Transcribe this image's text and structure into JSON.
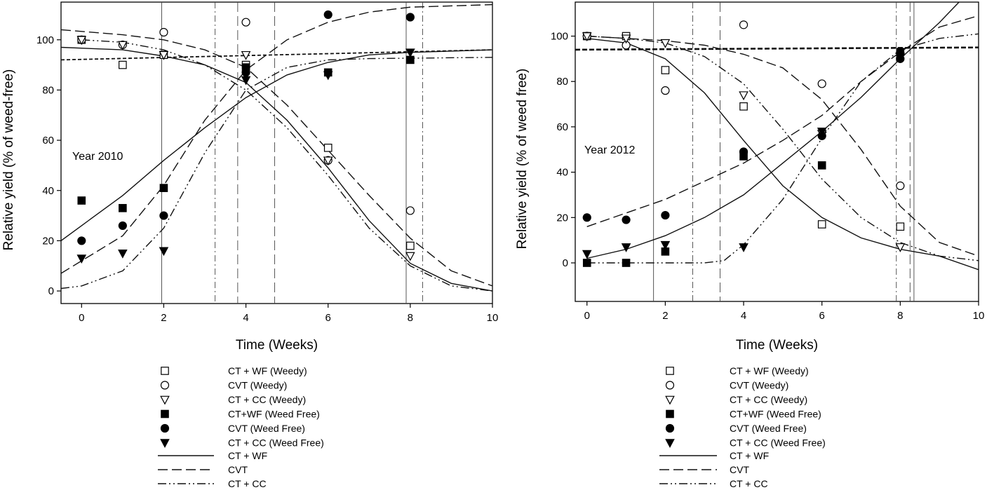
{
  "chart_data": [
    {
      "type": "scatter",
      "title": "",
      "annotation": "Year 2010",
      "xlabel": "Time (Weeks)",
      "ylabel": "Relative yield (% of weed-free)",
      "xlim": [
        -0.5,
        10
      ],
      "ylim": [
        -5,
        115
      ],
      "xticks": [
        "0",
        "2",
        "4",
        "6",
        "8",
        "10"
      ],
      "yticks": [
        "0",
        "20",
        "40",
        "60",
        "80",
        "100"
      ],
      "grid": false,
      "legend_position": "below",
      "series": [
        {
          "name": "CT + WF (Weedy)",
          "marker": "open-square",
          "points": [
            [
              0,
              100
            ],
            [
              1,
              90
            ],
            [
              2,
              94
            ],
            [
              4,
              90
            ],
            [
              6,
              57
            ],
            [
              8,
              18
            ]
          ]
        },
        {
          "name": "CVT (Weedy)",
          "marker": "open-circle",
          "points": [
            [
              0,
              100
            ],
            [
              1,
              98
            ],
            [
              2,
              103
            ],
            [
              4,
              107
            ],
            [
              6,
              52
            ],
            [
              8,
              32
            ]
          ]
        },
        {
          "name": "CT + CC (Weedy)",
          "marker": "open-triangle-down",
          "points": [
            [
              0,
              100
            ],
            [
              1,
              98
            ],
            [
              2,
              94
            ],
            [
              4,
              94
            ],
            [
              6,
              52
            ],
            [
              8,
              14
            ]
          ]
        },
        {
          "name": "CT+WF (Weed Free)",
          "marker": "filled-square",
          "points": [
            [
              0,
              36
            ],
            [
              1,
              33
            ],
            [
              2,
              41
            ],
            [
              4,
              89
            ],
            [
              6,
              87
            ],
            [
              8,
              92
            ]
          ]
        },
        {
          "name": "CVT (Weed Free)",
          "marker": "filled-circle",
          "points": [
            [
              0,
              20
            ],
            [
              1,
              26
            ],
            [
              2,
              30
            ],
            [
              4,
              87
            ],
            [
              6,
              110
            ],
            [
              8,
              109
            ]
          ]
        },
        {
          "name": "CT + CC (Weed Free)",
          "marker": "filled-triangle-down",
          "points": [
            [
              0,
              13
            ],
            [
              1,
              15
            ],
            [
              2,
              16
            ],
            [
              4,
              84
            ],
            [
              6,
              86
            ],
            [
              8,
              95
            ]
          ]
        }
      ],
      "curves": [
        {
          "name": "CT + WF",
          "style": "solid",
          "points": [
            [
              -0.5,
              97
            ],
            [
              1,
              96
            ],
            [
              2,
              93.5
            ],
            [
              3,
              90
            ],
            [
              4,
              83
            ],
            [
              5,
              68
            ],
            [
              6,
              49
            ],
            [
              7,
              28
            ],
            [
              8,
              11
            ],
            [
              9,
              3
            ],
            [
              10,
              0
            ]
          ]
        },
        {
          "name": "CVT",
          "style": "dashed",
          "points": [
            [
              -0.5,
              104
            ],
            [
              1,
              102
            ],
            [
              2,
              100
            ],
            [
              3,
              96
            ],
            [
              4,
              89
            ],
            [
              5,
              74
            ],
            [
              6,
              56
            ],
            [
              7,
              38
            ],
            [
              8,
              21
            ],
            [
              9,
              8
            ],
            [
              10,
              2
            ]
          ]
        },
        {
          "name": "CT + CC",
          "style": "dash-dot-dot",
          "points": [
            [
              0,
              100
            ],
            [
              1,
              99
            ],
            [
              2,
              96
            ],
            [
              3,
              90
            ],
            [
              4,
              80
            ],
            [
              5,
              65
            ],
            [
              6,
              46
            ],
            [
              7,
              25
            ],
            [
              8,
              10
            ],
            [
              9,
              2
            ],
            [
              10,
              0
            ]
          ]
        },
        {
          "name": "CT + WF (Weed Free) fit",
          "style": "solid",
          "points": [
            [
              -0.5,
              20
            ],
            [
              0,
              26
            ],
            [
              1,
              38
            ],
            [
              2,
              52
            ],
            [
              3,
              65
            ],
            [
              4,
              77
            ],
            [
              5,
              86
            ],
            [
              6,
              91
            ],
            [
              7,
              94
            ],
            [
              8,
              95
            ],
            [
              10,
              96
            ]
          ]
        },
        {
          "name": "CVT (Weed Free) fit",
          "style": "dashed",
          "points": [
            [
              -0.5,
              7
            ],
            [
              0,
              12
            ],
            [
              1,
              22
            ],
            [
              2,
              42
            ],
            [
              3,
              68
            ],
            [
              4,
              88
            ],
            [
              5,
              100
            ],
            [
              6,
              107
            ],
            [
              7,
              111
            ],
            [
              8,
              113
            ],
            [
              10,
              114
            ]
          ]
        },
        {
          "name": "CT + CC (Weed Free) fit",
          "style": "dash-dot-dot",
          "points": [
            [
              -0.5,
              1
            ],
            [
              0,
              2
            ],
            [
              1,
              8
            ],
            [
              2,
              25
            ],
            [
              3,
              55
            ],
            [
              4,
              80
            ],
            [
              5,
              89
            ],
            [
              6,
              92
            ],
            [
              7,
              92.5
            ],
            [
              10,
              93
            ]
          ]
        },
        {
          "name": "reference level",
          "style": "short-dash",
          "points": [
            [
              -0.5,
              92
            ],
            [
              10,
              96
            ]
          ]
        }
      ],
      "vertical_markers": [
        {
          "x": 1.95,
          "style": "solid"
        },
        {
          "x": 3.25,
          "style": "dash-dot"
        },
        {
          "x": 3.8,
          "style": "dashed"
        },
        {
          "x": 4.7,
          "style": "dashed"
        },
        {
          "x": 7.9,
          "style": "solid"
        },
        {
          "x": 8.3,
          "style": "dash-dot"
        }
      ]
    },
    {
      "type": "scatter",
      "title": "",
      "annotation": "Year 2012",
      "xlabel": "Time (Weeks)",
      "ylabel": "Relative yield (% of weed free)",
      "xlim": [
        -0.3,
        10
      ],
      "ylim": [
        -17,
        115
      ],
      "xticks": [
        "0",
        "2",
        "4",
        "6",
        "8",
        "10"
      ],
      "yticks": [
        "0",
        "20",
        "40",
        "60",
        "80",
        "100"
      ],
      "grid": false,
      "legend_position": "below",
      "series": [
        {
          "name": "CT + WF (Weedy)",
          "marker": "open-square",
          "points": [
            [
              0,
              100
            ],
            [
              1,
              100
            ],
            [
              2,
              85
            ],
            [
              4,
              69
            ],
            [
              6,
              17
            ],
            [
              8,
              16
            ]
          ]
        },
        {
          "name": "CVT (Weedy)",
          "marker": "open-circle",
          "points": [
            [
              0,
              100
            ],
            [
              1,
              96
            ],
            [
              2,
              76
            ],
            [
              4,
              105
            ],
            [
              6,
              79
            ],
            [
              8,
              34
            ]
          ]
        },
        {
          "name": "CT + CC (Weedy)",
          "marker": "open-triangle-down",
          "points": [
            [
              0,
              100
            ],
            [
              1,
              99
            ],
            [
              2,
              97
            ],
            [
              4,
              74
            ],
            [
              6,
              57
            ],
            [
              8,
              7
            ]
          ]
        },
        {
          "name": "CT+WF (Weed Free)",
          "marker": "filled-square",
          "points": [
            [
              0,
              0
            ],
            [
              1,
              0
            ],
            [
              2,
              5
            ],
            [
              4,
              47
            ],
            [
              6,
              43
            ],
            [
              8,
              93
            ]
          ]
        },
        {
          "name": "CVT (Weed Free)",
          "marker": "filled-circle",
          "points": [
            [
              0,
              20
            ],
            [
              1,
              19
            ],
            [
              2,
              21
            ],
            [
              4,
              49
            ],
            [
              6,
              56
            ],
            [
              8,
              90
            ]
          ]
        },
        {
          "name": "CT + CC (Weed Free)",
          "marker": "filled-triangle-down",
          "points": [
            [
              0,
              4
            ],
            [
              1,
              7
            ],
            [
              2,
              8
            ],
            [
              4,
              7
            ],
            [
              6,
              58
            ],
            [
              8,
              91
            ]
          ]
        }
      ],
      "curves": [
        {
          "name": "CT + WF",
          "style": "solid",
          "points": [
            [
              0,
              99
            ],
            [
              1,
              97
            ],
            [
              2,
              90
            ],
            [
              3,
              75
            ],
            [
              4,
              54
            ],
            [
              5,
              34
            ],
            [
              6,
              20
            ],
            [
              7,
              11
            ],
            [
              8,
              6
            ],
            [
              9,
              3
            ],
            [
              10,
              -3
            ]
          ]
        },
        {
          "name": "CVT",
          "style": "dashed",
          "points": [
            [
              0,
              100
            ],
            [
              1,
              99
            ],
            [
              2,
              98
            ],
            [
              3,
              96
            ],
            [
              4,
              92
            ],
            [
              5,
              86
            ],
            [
              6,
              72
            ],
            [
              7,
              50
            ],
            [
              8,
              25
            ],
            [
              9,
              9
            ],
            [
              10,
              3
            ]
          ]
        },
        {
          "name": "CT + CC",
          "style": "dash-dot-dot",
          "points": [
            [
              0,
              100
            ],
            [
              1,
              99
            ],
            [
              2,
              97
            ],
            [
              3,
              91
            ],
            [
              4,
              79
            ],
            [
              5,
              59
            ],
            [
              6,
              37
            ],
            [
              7,
              20
            ],
            [
              8,
              9
            ],
            [
              9,
              3
            ],
            [
              10,
              1
            ]
          ]
        },
        {
          "name": "CT + WF (Weed Free) fit",
          "style": "solid",
          "points": [
            [
              0,
              2
            ],
            [
              1,
              6
            ],
            [
              2,
              12
            ],
            [
              3,
              20
            ],
            [
              4,
              30
            ],
            [
              5,
              44
            ],
            [
              6,
              58
            ],
            [
              7,
              73
            ],
            [
              8,
              90
            ],
            [
              9,
              106
            ],
            [
              9.5,
              115
            ]
          ]
        },
        {
          "name": "CVT (Weed Free) fit",
          "style": "dashed",
          "points": [
            [
              0,
              16
            ],
            [
              1,
              22
            ],
            [
              2,
              28
            ],
            [
              3,
              36
            ],
            [
              4,
              44
            ],
            [
              5,
              54
            ],
            [
              6,
              65
            ],
            [
              7,
              80
            ],
            [
              8,
              93
            ],
            [
              9,
              104
            ],
            [
              10,
              109
            ]
          ]
        },
        {
          "name": "CT + CC (Weed Free) fit",
          "style": "dash-dot-dot",
          "points": [
            [
              0,
              0
            ],
            [
              1,
              0
            ],
            [
              2,
              0
            ],
            [
              3,
              0
            ],
            [
              3.5,
              1
            ],
            [
              4,
              8
            ],
            [
              5,
              28
            ],
            [
              6,
              55
            ],
            [
              7,
              80
            ],
            [
              8,
              94
            ],
            [
              9,
              99
            ],
            [
              10,
              101
            ]
          ]
        },
        {
          "name": "reference level",
          "style": "thick-short-dash",
          "points": [
            [
              -0.3,
              94
            ],
            [
              10,
              95
            ]
          ]
        }
      ],
      "vertical_markers": [
        {
          "x": 1.7,
          "style": "solid"
        },
        {
          "x": 2.7,
          "style": "dash-dot"
        },
        {
          "x": 3.4,
          "style": "dashed"
        },
        {
          "x": 7.9,
          "style": "dash-dot"
        },
        {
          "x": 8.25,
          "style": "dashed"
        },
        {
          "x": 8.35,
          "style": "solid"
        }
      ]
    }
  ],
  "legend": {
    "markers": [
      {
        "label": "CT + WF (Weedy)",
        "marker": "open-square"
      },
      {
        "label": "CVT (Weedy)",
        "marker": "open-circle"
      },
      {
        "label": "CT + CC (Weedy)",
        "marker": "open-triangle-down"
      },
      {
        "label": "CT+WF (Weed Free)",
        "marker": "filled-square"
      },
      {
        "label": "CVT (Weed Free)",
        "marker": "filled-circle"
      },
      {
        "label": "CT + CC (Weed Free)",
        "marker": "filled-triangle-down"
      }
    ],
    "lines": [
      {
        "label": "CT + WF",
        "style": "solid"
      },
      {
        "label": "CVT",
        "style": "dashed"
      },
      {
        "label": "CT + CC",
        "style": "dash-dot-dot"
      }
    ]
  }
}
